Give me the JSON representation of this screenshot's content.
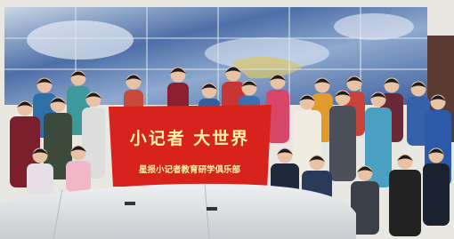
{
  "banner": {
    "title": "小记者 大世界",
    "subtitle": "星报小记者教育研学俱乐部"
  }
}
